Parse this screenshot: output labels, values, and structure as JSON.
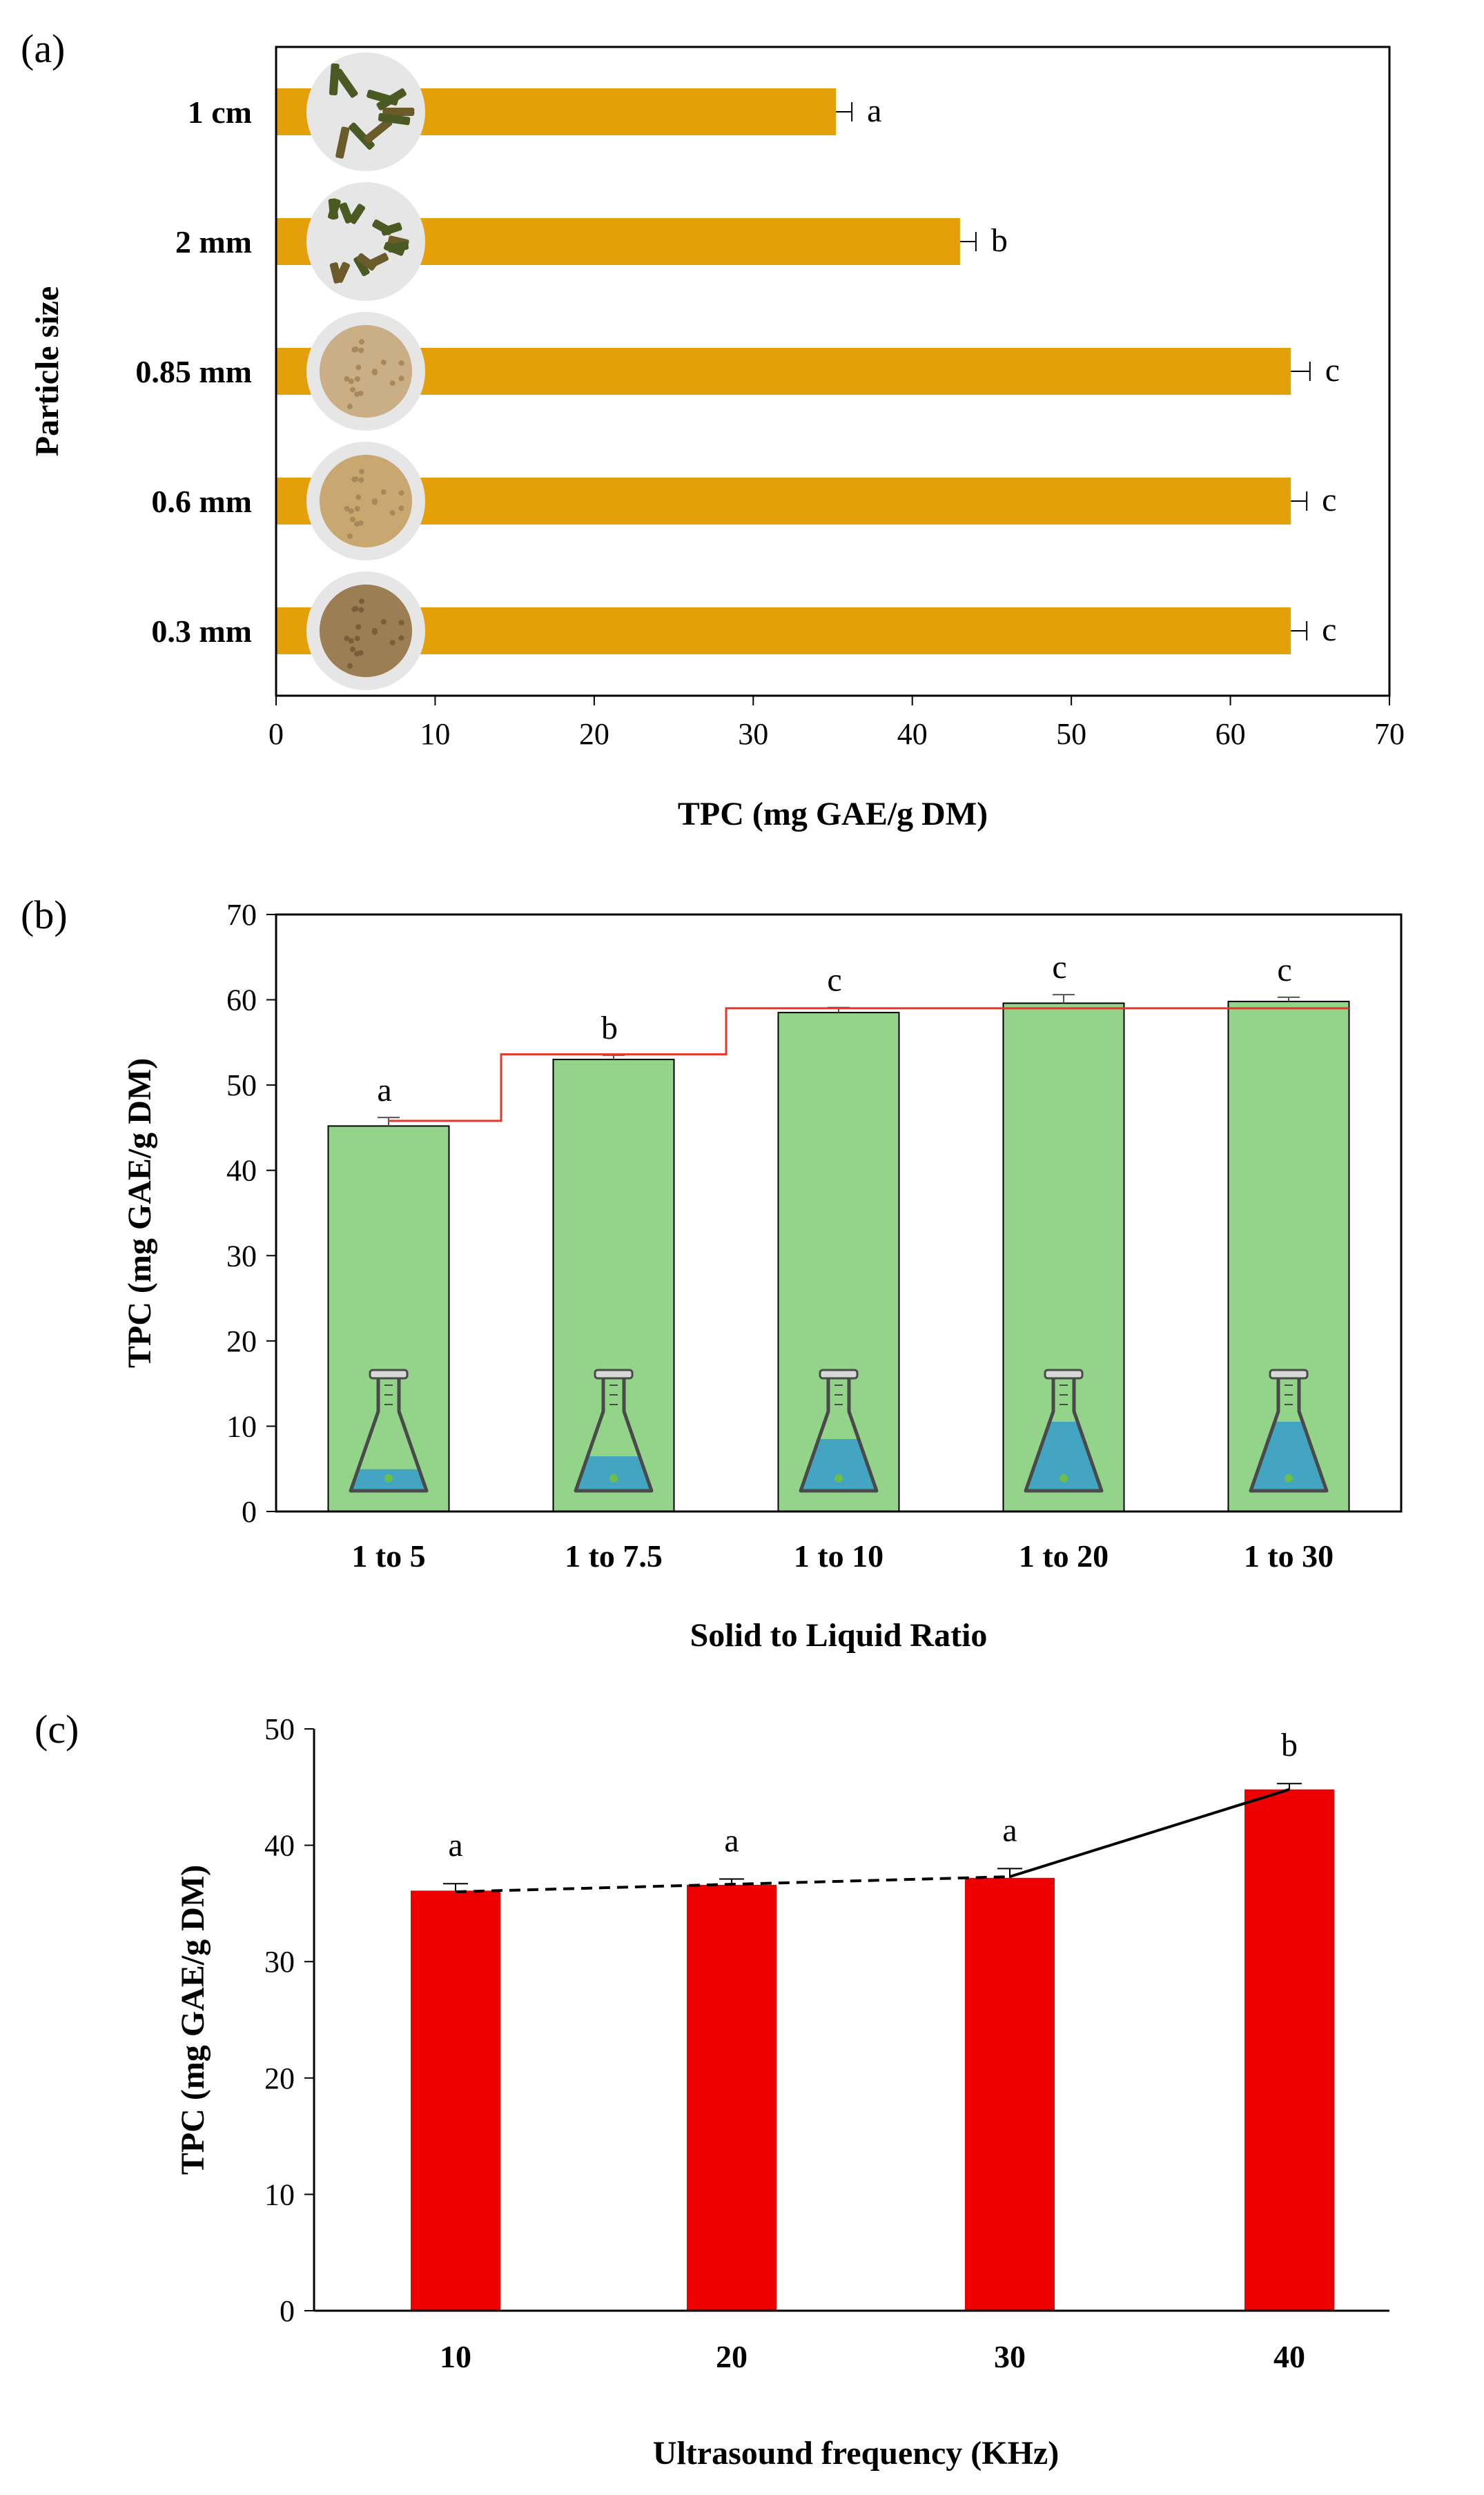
{
  "colors": {
    "panel_a_bar": "#E3A008",
    "panel_b_bar": "#94D48A",
    "panel_b_step": "#E8372A",
    "panel_c_bar": "#EE0000",
    "flask_liquid": "#3AA0C8",
    "axis": "#000000"
  },
  "chart_data": [
    {
      "panel_label": "(a)",
      "type": "bar",
      "orientation": "horizontal",
      "ylabel": "Particle size",
      "xlabel": "TPC (mg GAE/g DM)",
      "xlim": [
        0,
        70
      ],
      "xticks": [
        "0",
        "10",
        "20",
        "30",
        "40",
        "50",
        "60",
        "70"
      ],
      "categories": [
        "1 cm",
        "2 mm",
        "0.85 mm",
        "0.6 mm",
        "0.3 mm"
      ],
      "values": [
        35.2,
        43.0,
        63.8,
        63.8,
        63.8
      ],
      "errors": [
        1.0,
        1.0,
        1.2,
        1.0,
        1.0
      ],
      "significance": [
        "a",
        "b",
        "c",
        "c",
        "c"
      ],
      "sample_images": [
        "chopped-stems-image",
        "cut-pieces-image",
        "coarse-powder-image",
        "medium-powder-image",
        "fine-powder-image"
      ]
    },
    {
      "panel_label": "(b)",
      "type": "bar",
      "orientation": "vertical",
      "xlabel": "Solid to Liquid Ratio",
      "ylabel": "TPC (mg GAE/g DM)",
      "ylim": [
        0,
        70
      ],
      "yticks": [
        "0",
        "10",
        "20",
        "30",
        "40",
        "50",
        "60",
        "70"
      ],
      "categories": [
        "1 to 5",
        "1 to  7.5",
        "1 to 10",
        "1 to 20",
        "1 to 30"
      ],
      "values": [
        45.2,
        53.0,
        58.5,
        59.6,
        59.8
      ],
      "errors": [
        1.0,
        0.5,
        0.6,
        1.0,
        0.5
      ],
      "significance": [
        "a",
        "b",
        "c",
        "c",
        "c"
      ],
      "step_line": [
        45.8,
        53.6,
        59.0,
        59.0,
        59.0
      ],
      "flask_fill_levels": [
        0.25,
        0.4,
        0.6,
        0.8,
        0.8
      ]
    },
    {
      "panel_label": "(c)",
      "type": "bar",
      "orientation": "vertical",
      "xlabel": "Ultrasound frequency (KHz)",
      "ylabel": "TPC (mg GAE/g DM)",
      "ylim": [
        0,
        50
      ],
      "yticks": [
        "0",
        "10",
        "20",
        "30",
        "40",
        "50"
      ],
      "categories": [
        "10",
        "20",
        "30",
        "40"
      ],
      "values": [
        36.1,
        36.6,
        37.2,
        44.8
      ],
      "errors": [
        0.6,
        0.5,
        0.8,
        0.5
      ],
      "significance": [
        "a",
        "a",
        "a",
        "b"
      ],
      "trend_line": {
        "dashed_segment": [
          36.0,
          37.3
        ],
        "solid_segment_end": 44.8
      }
    }
  ]
}
